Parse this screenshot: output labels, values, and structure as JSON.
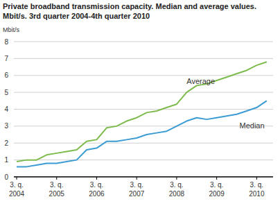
{
  "chart_data": {
    "type": "line",
    "title": "Private broadband transmission capacity. Median and average values.",
    "subtitle": "Mbit/s. 3rd quarter 2004-4th quarter 2010",
    "y_label": "Mbit/s",
    "categories": [
      "3. q. 2004",
      null,
      null,
      null,
      "3. q. 2005",
      null,
      null,
      null,
      "3. q. 2006",
      null,
      null,
      null,
      "3. q. 2007",
      null,
      null,
      null,
      "3. q. 2008",
      null,
      null,
      null,
      "3. q. 2009",
      null,
      null,
      null,
      "3. q. 2010",
      null
    ],
    "series": [
      {
        "name": "Average",
        "color": "#7dbb4c",
        "values": [
          0.9,
          1.0,
          1.0,
          1.3,
          1.4,
          1.5,
          1.6,
          2.1,
          2.2,
          2.9,
          3.0,
          3.3,
          3.5,
          3.8,
          3.9,
          4.1,
          4.3,
          5.0,
          5.4,
          5.5,
          5.7,
          5.9,
          6.1,
          6.3,
          6.6,
          6.8
        ]
      },
      {
        "name": "Median",
        "color": "#3b9bd3",
        "values": [
          0.6,
          0.6,
          0.7,
          0.8,
          0.8,
          0.9,
          1.0,
          1.6,
          1.7,
          2.1,
          2.1,
          2.2,
          2.3,
          2.5,
          2.6,
          2.7,
          3.0,
          3.3,
          3.5,
          3.4,
          3.5,
          3.6,
          3.7,
          3.9,
          4.1,
          4.5
        ]
      }
    ],
    "ylim": [
      0,
      8
    ],
    "yticks": [
      0,
      1,
      2,
      3,
      4,
      5,
      6,
      7,
      8
    ],
    "grid": true
  }
}
